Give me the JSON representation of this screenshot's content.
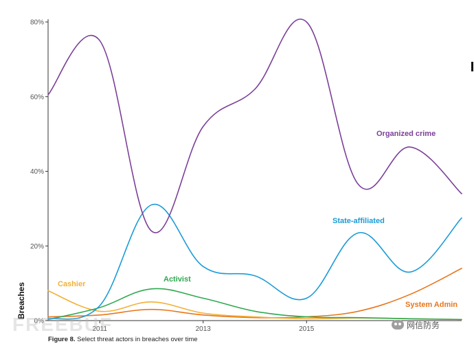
{
  "chart_data": {
    "type": "line",
    "title": "",
    "ylabel": "Breaches",
    "xlabel": "",
    "x": [
      2010,
      2011,
      2012,
      2013,
      2014,
      2015,
      2016,
      2017,
      2018
    ],
    "x_tick_labels": [
      "2011",
      "2013",
      "2015"
    ],
    "xlim": [
      2010,
      2018
    ],
    "ylim": [
      0,
      80
    ],
    "y_ticks": [
      0,
      20,
      40,
      60,
      80
    ],
    "y_tick_format": "percent",
    "grid": false,
    "legend": "inline labels",
    "series": [
      {
        "name": "Organized crime",
        "color": "#7b3f98",
        "values": [
          60.5,
          75,
          24,
          52,
          62,
          80,
          36.5,
          46.5,
          34
        ]
      },
      {
        "name": "State-affiliated",
        "color": "#1a9bd7",
        "values": [
          0.5,
          4,
          31,
          14.5,
          12,
          6,
          23.5,
          13,
          27.5
        ]
      },
      {
        "name": "Activist",
        "color": "#2ea84f",
        "values": [
          0.3,
          3.5,
          8.5,
          6,
          2.5,
          1,
          0.8,
          0.5,
          0.3
        ]
      },
      {
        "name": "Cashier",
        "color": "#f2b035",
        "values": [
          8,
          2.5,
          5,
          2,
          1,
          0.5,
          0.7,
          0.5,
          0.3
        ]
      },
      {
        "name": "System Admin",
        "color": "#e8751a",
        "values": [
          1,
          1.5,
          3,
          1.5,
          0.8,
          1,
          2.5,
          7,
          14
        ]
      }
    ]
  },
  "caption": {
    "prefix": "Figure 8.",
    "text": " Select threat actors in breaches over time"
  },
  "watermark": "FREEBUF",
  "badge": {
    "icon": "wechat-icon",
    "text": "网信防务"
  }
}
